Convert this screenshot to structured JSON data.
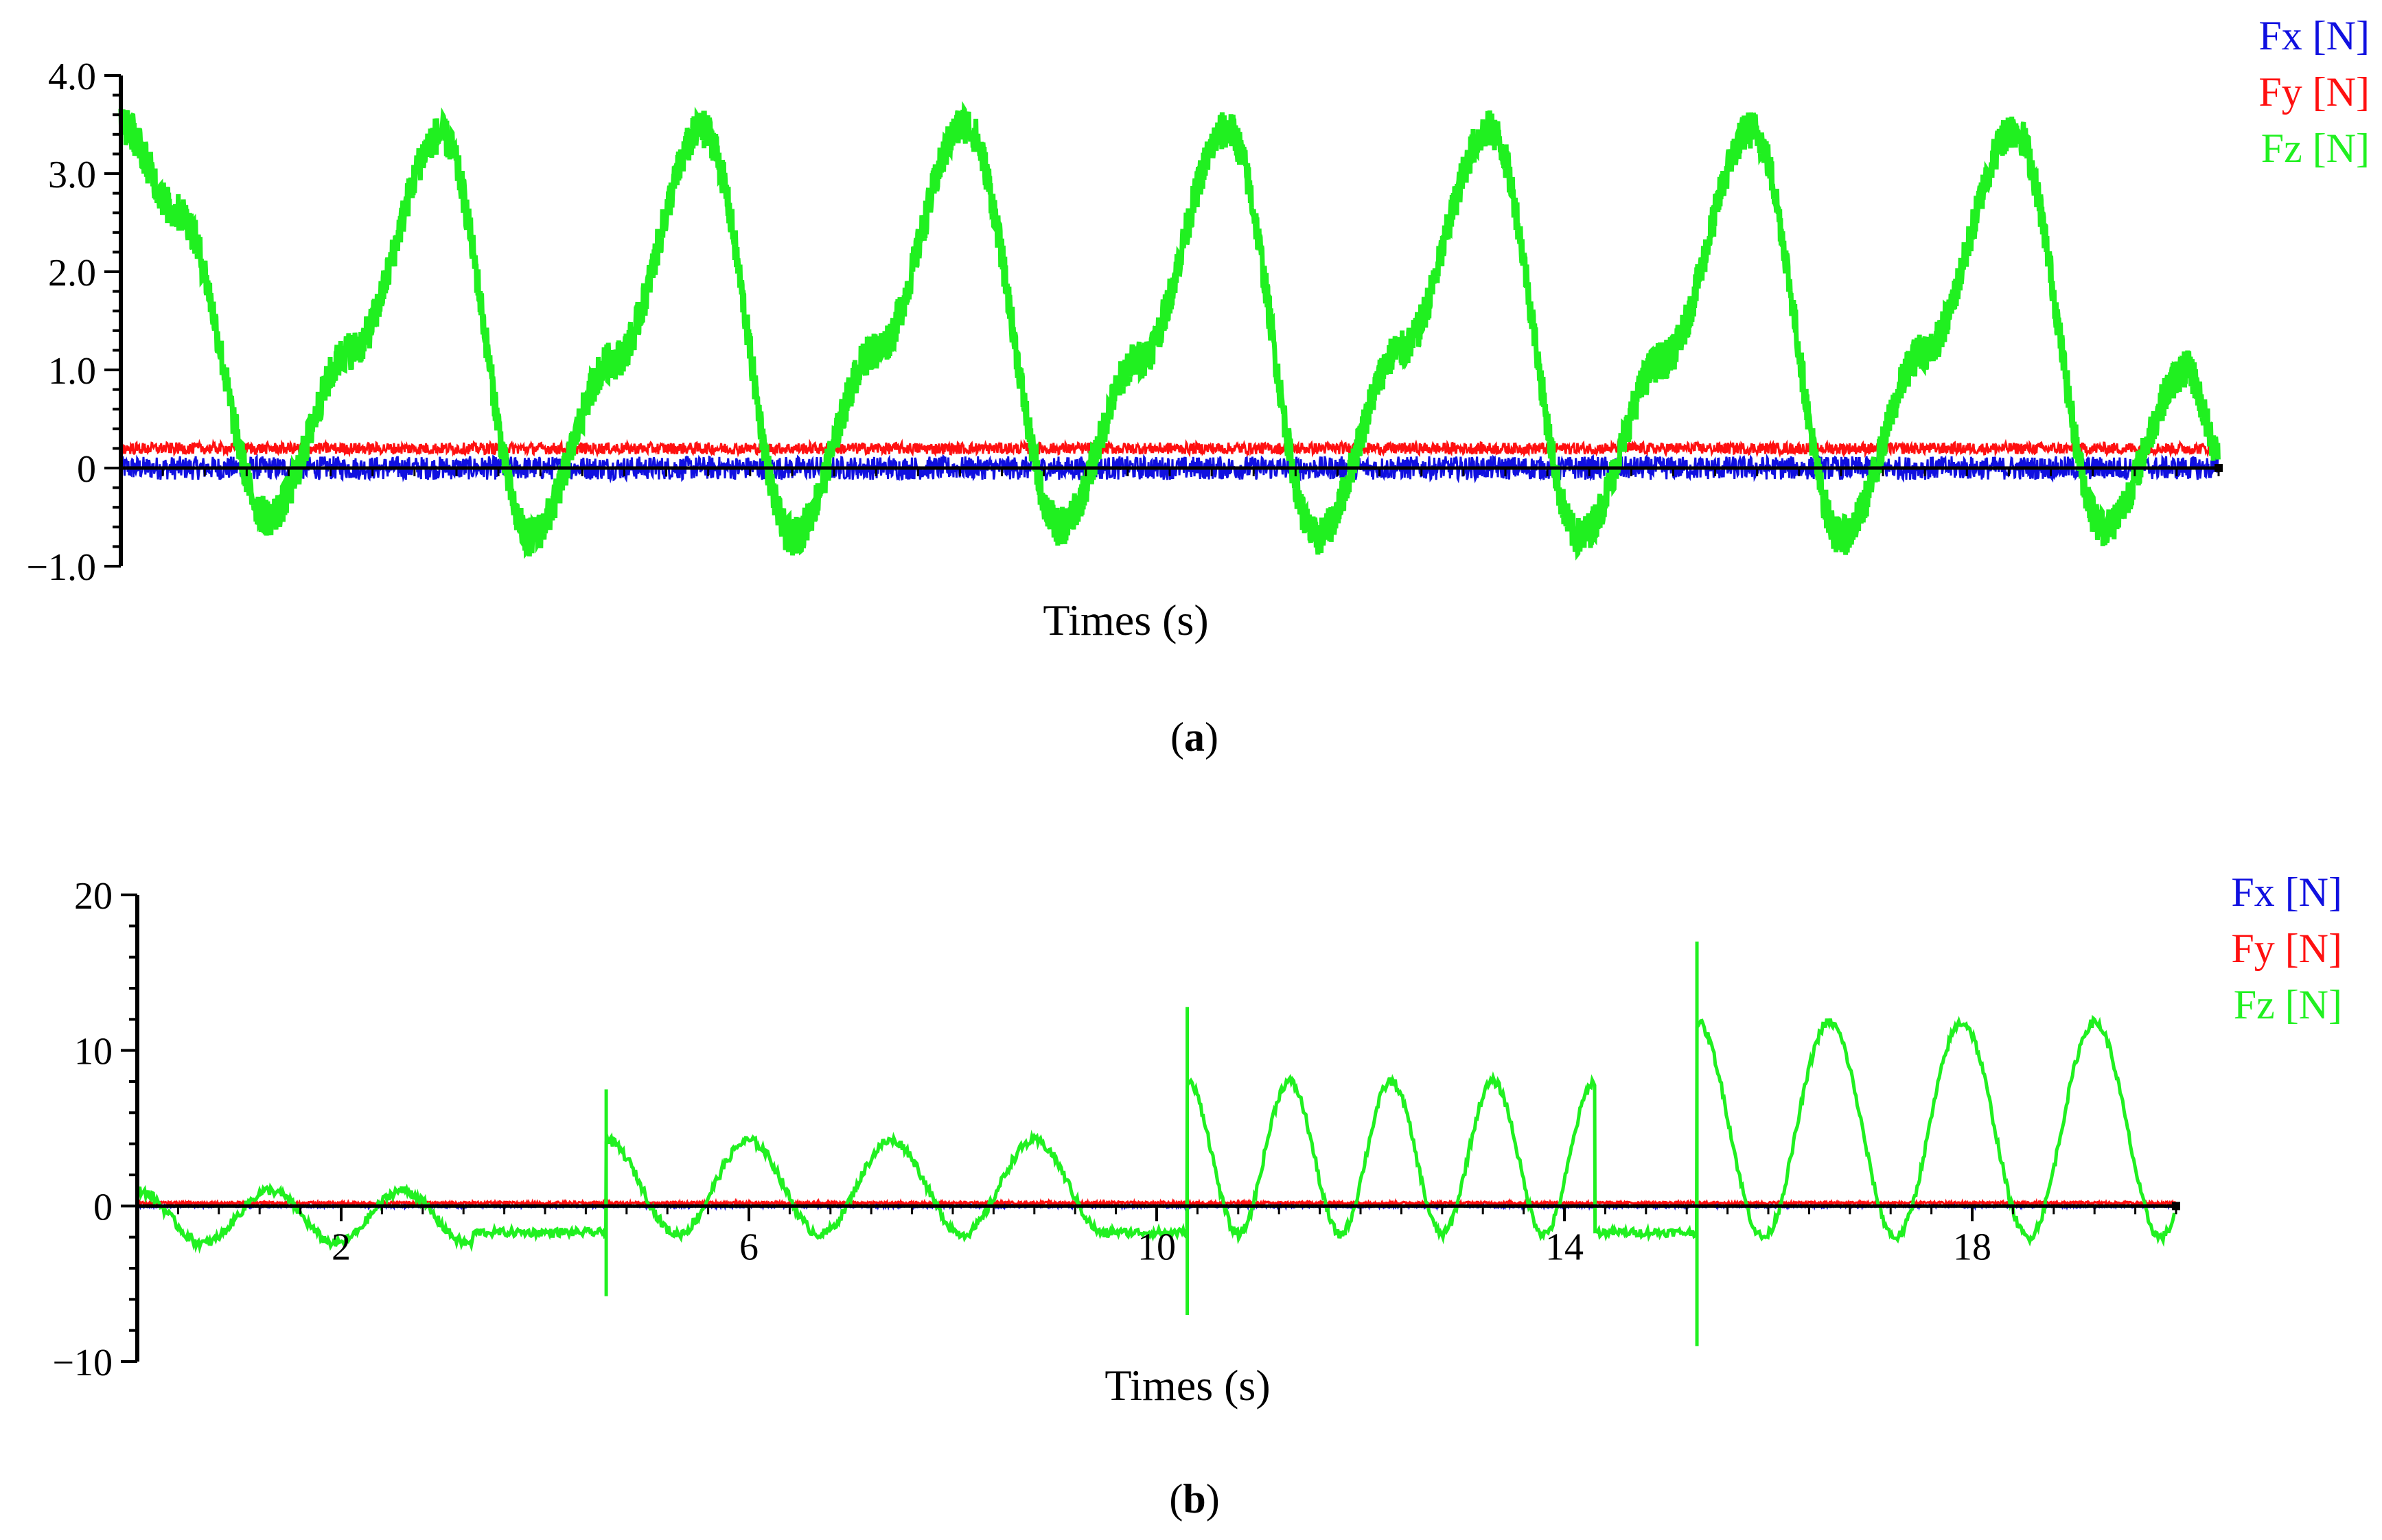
{
  "chart_data": [
    {
      "type": "line",
      "panel_label": "a",
      "title": "",
      "xlabel": "Times (s)",
      "ylabel": "",
      "x_range": [
        0,
        20
      ],
      "ylim": [
        -1.0,
        4.0
      ],
      "y_ticks": [
        -1.0,
        0,
        1.0,
        2.0,
        3.0,
        4.0
      ],
      "y_tick_labels": [
        "−1.0",
        "0",
        "1.0",
        "2.0",
        "3.0",
        "4.0"
      ],
      "x_tick_labels": [],
      "legend": {
        "placement": "top-right",
        "entries": [
          "Fx [N]",
          "Fy [N]",
          "Fz [N]"
        ]
      },
      "colors": {
        "Fx [N]": "#1010e0",
        "Fy [N]": "#ff1010",
        "Fz [N]": "#20f020"
      },
      "series": [
        {
          "name": "Fx [N]",
          "x": [
            0,
            20
          ],
          "y": [
            0.0,
            0.0
          ],
          "noise_amplitude": 0.12
        },
        {
          "name": "Fy [N]",
          "x": [
            0,
            20
          ],
          "y": [
            0.2,
            0.2
          ],
          "noise_amplitude": 0.06
        },
        {
          "name": "Fz [N]",
          "x": [
            0.0,
            0.55,
            1.4,
            2.2,
            3.05,
            3.9,
            4.7,
            5.55,
            6.4,
            7.2,
            8.05,
            8.95,
            9.7,
            10.55,
            11.4,
            12.2,
            13.05,
            13.9,
            14.7,
            15.55,
            16.4,
            17.2,
            18.05,
            18.9,
            19.7,
            20.0
          ],
          "y": [
            3.5,
            2.6,
            -0.5,
            1.2,
            3.4,
            -0.7,
            1.1,
            3.45,
            -0.7,
            1.2,
            3.5,
            -0.6,
            1.1,
            3.45,
            -0.7,
            1.2,
            3.45,
            -0.7,
            1.1,
            3.45,
            -0.7,
            1.2,
            3.45,
            -0.6,
            1.0,
            0.2
          ],
          "noise_amplitude": 0.2
        }
      ]
    },
    {
      "type": "line",
      "panel_label": "b",
      "title": "",
      "xlabel": "Times (s)",
      "ylabel": "",
      "x_range": [
        0,
        20
      ],
      "ylim": [
        -10,
        20
      ],
      "y_ticks": [
        -10,
        0,
        10,
        20
      ],
      "y_tick_labels": [
        "−10",
        "0",
        "10",
        "20"
      ],
      "x_ticks": [
        2,
        6,
        10,
        14,
        18
      ],
      "x_tick_labels": [
        "2",
        "6",
        "10",
        "14",
        "18"
      ],
      "legend": {
        "placement": "top-right",
        "entries": [
          "Fx [N]",
          "Fy [N]",
          "Fz [N]"
        ]
      },
      "colors": {
        "Fx [N]": "#1010e0",
        "Fy [N]": "#ff1010",
        "Fz [N]": "#20f020"
      },
      "series": [
        {
          "name": "Fx [N]",
          "x": [
            0,
            20
          ],
          "y": [
            0.0,
            0.0
          ]
        },
        {
          "name": "Fy [N]",
          "x": [
            0,
            20
          ],
          "y": [
            0.2,
            0.2
          ]
        },
        {
          "name": "Fz [N]",
          "segments": [
            {
              "x_start": 0.0,
              "x_end": 3.3,
              "mean": -0.7,
              "amplitude": 1.7,
              "period": 1.3,
              "phase_start": 0.0
            },
            {
              "x_start": 3.3,
              "x_end": 4.6,
              "flat": -1.7
            },
            {
              "x_start": 4.6,
              "x_end": 9.6,
              "mean": 1.2,
              "amplitude": 3.0,
              "period": 1.4,
              "phase_start": 0.0
            },
            {
              "x_start": 9.6,
              "x_end": 10.3,
              "flat": -1.7
            },
            {
              "x_start": 10.3,
              "x_end": 14.3,
              "mean": 3.1,
              "amplitude": 4.9,
              "period": 1.0,
              "phase_start": 0.0
            },
            {
              "x_start": 14.3,
              "x_end": 15.3,
              "flat": -1.7
            },
            {
              "x_start": 15.3,
              "x_end": 20.0,
              "mean": 4.9,
              "amplitude": 6.9,
              "period": 1.3,
              "phase_start": 0.0
            }
          ],
          "spikes": [
            {
              "x": 4.6,
              "y_min": -5.8,
              "y_max": 7.5
            },
            {
              "x": 10.3,
              "y_min": -7.0,
              "y_max": 12.8
            },
            {
              "x": 15.3,
              "y_min": -9.0,
              "y_max": 17.0
            }
          ]
        }
      ]
    }
  ],
  "captions": {
    "a": {
      "open": "(",
      "letter": "a",
      "close": ")"
    },
    "b": {
      "open": "(",
      "letter": "b",
      "close": ")"
    }
  }
}
